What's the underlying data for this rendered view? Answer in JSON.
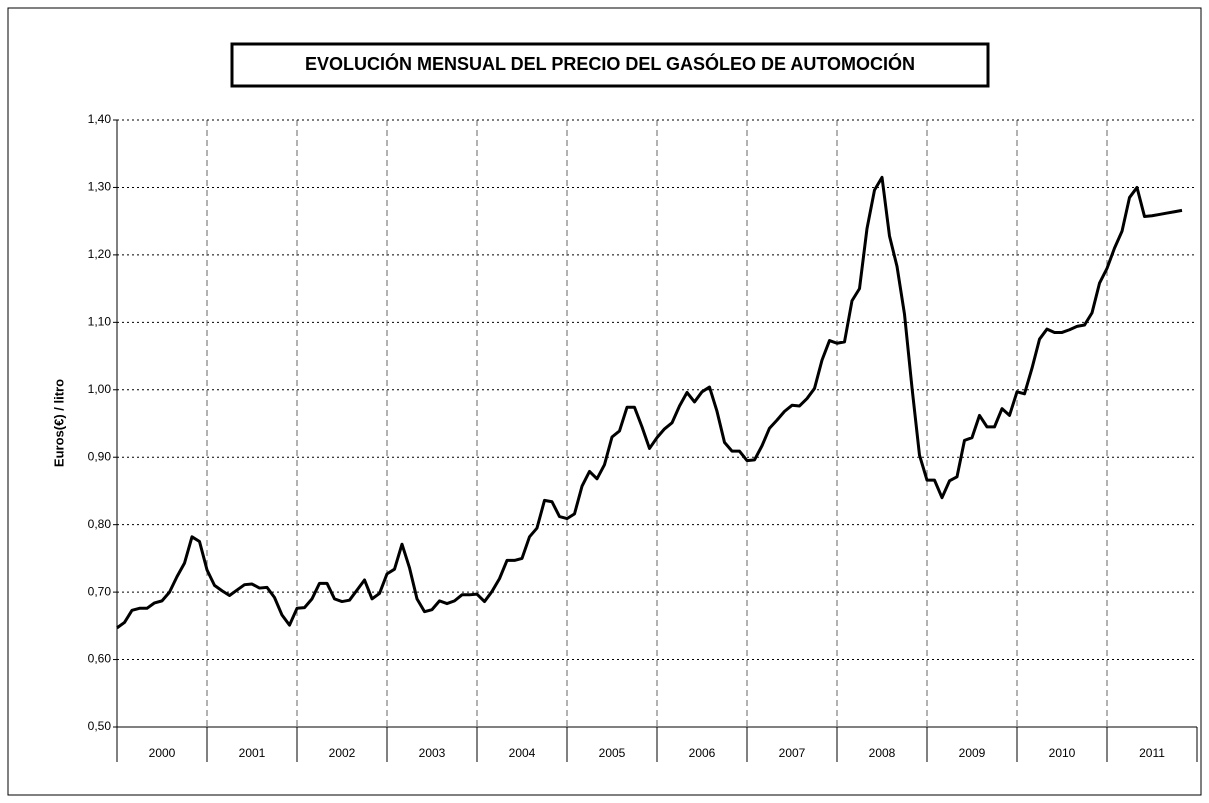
{
  "chart_data": {
    "type": "line",
    "title": "EVOLUCIÓN MENSUAL DEL PRECIO DEL GASÓLEO DE AUTOMOCIÓN",
    "y_label": "Euros(€) / litro",
    "categories": [
      "2000",
      "2001",
      "2002",
      "2003",
      "2004",
      "2005",
      "2006",
      "2007",
      "2008",
      "2009",
      "2010",
      "2011"
    ],
    "color": "#000000",
    "values": [
      [
        0.647,
        0.655,
        0.673,
        0.676,
        0.676,
        0.684,
        0.687,
        0.7,
        0.723,
        0.743,
        0.782,
        0.775
      ],
      [
        0.733,
        0.71,
        0.702,
        0.695,
        0.703,
        0.711,
        0.712,
        0.706,
        0.707,
        0.692,
        0.666,
        0.651
      ],
      [
        0.676,
        0.677,
        0.69,
        0.713,
        0.713,
        0.69,
        0.686,
        0.688,
        0.703,
        0.718,
        0.69,
        0.698
      ],
      [
        0.727,
        0.734,
        0.771,
        0.736,
        0.69,
        0.671,
        0.674,
        0.687,
        0.683,
        0.687,
        0.696,
        0.696
      ],
      [
        0.697,
        0.686,
        0.701,
        0.72,
        0.747,
        0.747,
        0.75,
        0.782,
        0.795,
        0.836,
        0.834,
        0.812
      ],
      [
        0.809,
        0.816,
        0.857,
        0.879,
        0.868,
        0.889,
        0.93,
        0.939,
        0.974,
        0.974,
        0.945,
        0.913
      ],
      [
        0.929,
        0.942,
        0.951,
        0.976,
        0.996,
        0.982,
        0.997,
        1.004,
        0.968,
        0.922,
        0.909,
        0.909
      ],
      [
        0.895,
        0.896,
        0.917,
        0.943,
        0.955,
        0.968,
        0.977,
        0.976,
        0.987,
        1.002,
        1.044,
        1.073
      ],
      [
        1.069,
        1.071,
        1.132,
        1.15,
        1.239,
        1.296,
        1.315,
        1.228,
        1.183,
        1.112,
        1.003,
        0.903
      ],
      [
        0.866,
        0.866,
        0.84,
        0.865,
        0.871,
        0.925,
        0.929,
        0.962,
        0.945,
        0.945,
        0.972,
        0.962
      ],
      [
        0.997,
        0.994,
        1.032,
        1.075,
        1.09,
        1.085,
        1.085,
        1.089,
        1.094,
        1.096,
        1.114,
        1.158
      ],
      [
        1.18,
        1.21,
        1.235,
        1.285,
        1.3,
        1.257,
        1.258,
        1.26,
        1.262,
        1.264,
        1.266
      ]
    ],
    "ylim": [
      0.5,
      1.4
    ],
    "yticks": [
      {
        "value": 0.5,
        "label": "0,50"
      },
      {
        "value": 0.6,
        "label": "0,60"
      },
      {
        "value": 0.7,
        "label": "0,70"
      },
      {
        "value": 0.8,
        "label": "0,80"
      },
      {
        "value": 0.9,
        "label": "0,90"
      },
      {
        "value": 1.0,
        "label": "1,00"
      },
      {
        "value": 1.1,
        "label": "1,10"
      },
      {
        "value": 1.2,
        "label": "1,20"
      },
      {
        "value": 1.3,
        "label": "1,30"
      },
      {
        "value": 1.4,
        "label": "1,40"
      }
    ],
    "grid": true
  }
}
